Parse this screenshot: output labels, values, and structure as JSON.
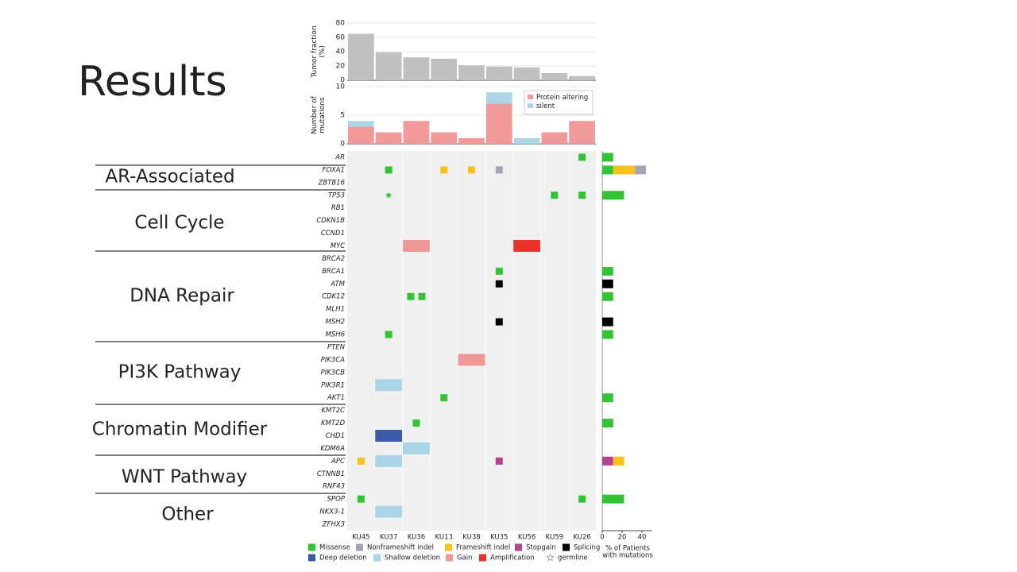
{
  "slide": {
    "title": "Results",
    "groups": [
      "AR-Associated",
      "Cell Cycle",
      "DNA Repair",
      "PI3K Pathway",
      "Chromatin Modifier",
      "WNT Pathway",
      "Other"
    ]
  },
  "chart_data": [
    {
      "type": "bar",
      "ylabel": "Tumor fraction\n(%)",
      "color": "#c0c0c0",
      "values": [
        65,
        39,
        32,
        30,
        21,
        19,
        18,
        10,
        6
      ],
      "ylim": [
        0,
        80
      ],
      "yticks": [
        0,
        20,
        40,
        60,
        80
      ],
      "grid": true
    },
    {
      "type": "bar",
      "stacked": true,
      "ylabel": "Number of\nmutations",
      "ylim": [
        0,
        10
      ],
      "yticks": [
        0,
        5,
        10
      ],
      "grid": true,
      "legend": "upper right",
      "series": [
        {
          "name": "Protein altering",
          "color": "#f29a9a",
          "values": [
            3,
            2,
            4,
            2,
            1,
            7,
            0,
            2,
            4
          ]
        },
        {
          "name": "silent",
          "color": "#acd6e6",
          "values": [
            1,
            0,
            0,
            0,
            0,
            2,
            1,
            0,
            0
          ]
        }
      ]
    },
    {
      "type": "oncoprint",
      "samples": [
        "KU45",
        "KU37",
        "KU36",
        "KU13",
        "KU38",
        "KU35",
        "KU56",
        "KU59",
        "KU26"
      ],
      "genes": [
        "AR",
        "FOXA1",
        "ZBTB16",
        "TP53",
        "RB1",
        "CDKN1B",
        "CCND1",
        "MYC",
        "BRCA2",
        "BRCA1",
        "ATM",
        "CDK12",
        "MLH1",
        "MSH2",
        "MSH6",
        "PTEN",
        "PIK3CA",
        "PIK3CB",
        "PIK3R1",
        "AKT1",
        "KMT2C",
        "KMT2D",
        "CHD1",
        "KDM6A",
        "APC",
        "CTNNB1",
        "RNF43",
        "SPOP",
        "NKX3-1",
        "ZFHX3"
      ],
      "legend": [
        {
          "name": "Missense",
          "color": "#33c433",
          "shape": "square"
        },
        {
          "name": "Nonframeshift indel",
          "color": "#a3a3b8",
          "shape": "square"
        },
        {
          "name": "Frameshift indel",
          "color": "#f6c21b",
          "shape": "square"
        },
        {
          "name": "Stopgain",
          "color": "#b2418f",
          "shape": "square"
        },
        {
          "name": "Splicing",
          "color": "#000000",
          "shape": "square"
        },
        {
          "name": "Deep deletion",
          "color": "#3b5ba9",
          "shape": "cell"
        },
        {
          "name": "Shallow deletion",
          "color": "#a9d5e6",
          "shape": "cell"
        },
        {
          "name": "Gain",
          "color": "#f09898",
          "shape": "cell"
        },
        {
          "name": "Amplification",
          "color": "#e8322b",
          "shape": "cell"
        },
        {
          "name": "germline",
          "color": "#999999",
          "shape": "star"
        }
      ],
      "alterations": [
        {
          "gene": "AR",
          "sample": "KU26",
          "type": "Missense"
        },
        {
          "gene": "FOXA1",
          "sample": "KU37",
          "type": "Missense"
        },
        {
          "gene": "FOXA1",
          "sample": "KU13",
          "type": "Frameshift indel"
        },
        {
          "gene": "FOXA1",
          "sample": "KU38",
          "type": "Frameshift indel"
        },
        {
          "gene": "FOXA1",
          "sample": "KU35",
          "type": "Nonframeshift indel"
        },
        {
          "gene": "TP53",
          "sample": "KU37",
          "type": "Missense",
          "germline": true
        },
        {
          "gene": "TP53",
          "sample": "KU59",
          "type": "Missense"
        },
        {
          "gene": "TP53",
          "sample": "KU26",
          "type": "Missense"
        },
        {
          "gene": "MYC",
          "sample": "KU36",
          "type": "Gain"
        },
        {
          "gene": "MYC",
          "sample": "KU56",
          "type": "Amplification"
        },
        {
          "gene": "BRCA1",
          "sample": "KU35",
          "type": "Missense"
        },
        {
          "gene": "ATM",
          "sample": "KU35",
          "type": "Splicing"
        },
        {
          "gene": "CDK12",
          "sample": "KU36",
          "type": "Missense"
        },
        {
          "gene": "CDK12",
          "sample": "KU36",
          "type": "Missense"
        },
        {
          "gene": "MSH2",
          "sample": "KU35",
          "type": "Splicing"
        },
        {
          "gene": "MSH6",
          "sample": "KU37",
          "type": "Missense"
        },
        {
          "gene": "PIK3CA",
          "sample": "KU38",
          "type": "Gain"
        },
        {
          "gene": "PIK3R1",
          "sample": "KU37",
          "type": "Shallow deletion"
        },
        {
          "gene": "AKT1",
          "sample": "KU13",
          "type": "Missense"
        },
        {
          "gene": "KMT2D",
          "sample": "KU36",
          "type": "Missense"
        },
        {
          "gene": "CHD1",
          "sample": "KU37",
          "type": "Deep deletion"
        },
        {
          "gene": "KDM6A",
          "sample": "KU36",
          "type": "Shallow deletion"
        },
        {
          "gene": "APC",
          "sample": "KU45",
          "type": "Frameshift indel"
        },
        {
          "gene": "APC",
          "sample": "KU37",
          "type": "Shallow deletion"
        },
        {
          "gene": "APC",
          "sample": "KU35",
          "type": "Stopgain"
        },
        {
          "gene": "SPOP",
          "sample": "KU45",
          "type": "Missense"
        },
        {
          "gene": "SPOP",
          "sample": "KU26",
          "type": "Missense"
        },
        {
          "gene": "NKX3-1",
          "sample": "KU37",
          "type": "Shallow deletion"
        }
      ]
    },
    {
      "type": "bar",
      "orientation": "horizontal",
      "stacked": true,
      "xlabel": "% of Patients\nwith mutations",
      "xlim": [
        0,
        50
      ],
      "xticks": [
        0,
        20,
        40
      ],
      "series": [
        {
          "type": "Missense",
          "values": [
            11,
            11,
            0,
            22,
            0,
            0,
            0,
            0,
            0,
            11,
            0,
            11,
            0,
            0,
            11,
            0,
            0,
            0,
            0,
            11,
            0,
            11,
            0,
            0,
            0,
            0,
            0,
            22,
            0,
            0
          ]
        },
        {
          "type": "Stopgain",
          "values": [
            0,
            0,
            0,
            0,
            0,
            0,
            0,
            0,
            0,
            0,
            0,
            0,
            0,
            0,
            0,
            0,
            0,
            0,
            0,
            0,
            0,
            0,
            0,
            0,
            11,
            0,
            0,
            0,
            0,
            0
          ]
        },
        {
          "type": "Splicing",
          "values": [
            0,
            0,
            0,
            0,
            0,
            0,
            0,
            0,
            0,
            0,
            11,
            0,
            0,
            11,
            0,
            0,
            0,
            0,
            0,
            0,
            0,
            0,
            0,
            0,
            0,
            0,
            0,
            0,
            0,
            0
          ]
        },
        {
          "type": "Frameshift indel",
          "values": [
            0,
            22,
            0,
            0,
            0,
            0,
            0,
            0,
            0,
            0,
            0,
            0,
            0,
            0,
            0,
            0,
            0,
            0,
            0,
            0,
            0,
            0,
            0,
            0,
            11,
            0,
            0,
            0,
            0,
            0
          ]
        },
        {
          "type": "Nonframeshift indel",
          "values": [
            0,
            11,
            0,
            0,
            0,
            0,
            0,
            0,
            0,
            0,
            0,
            0,
            0,
            0,
            0,
            0,
            0,
            0,
            0,
            0,
            0,
            0,
            0,
            0,
            0,
            0,
            0,
            0,
            0,
            0
          ]
        }
      ]
    }
  ]
}
